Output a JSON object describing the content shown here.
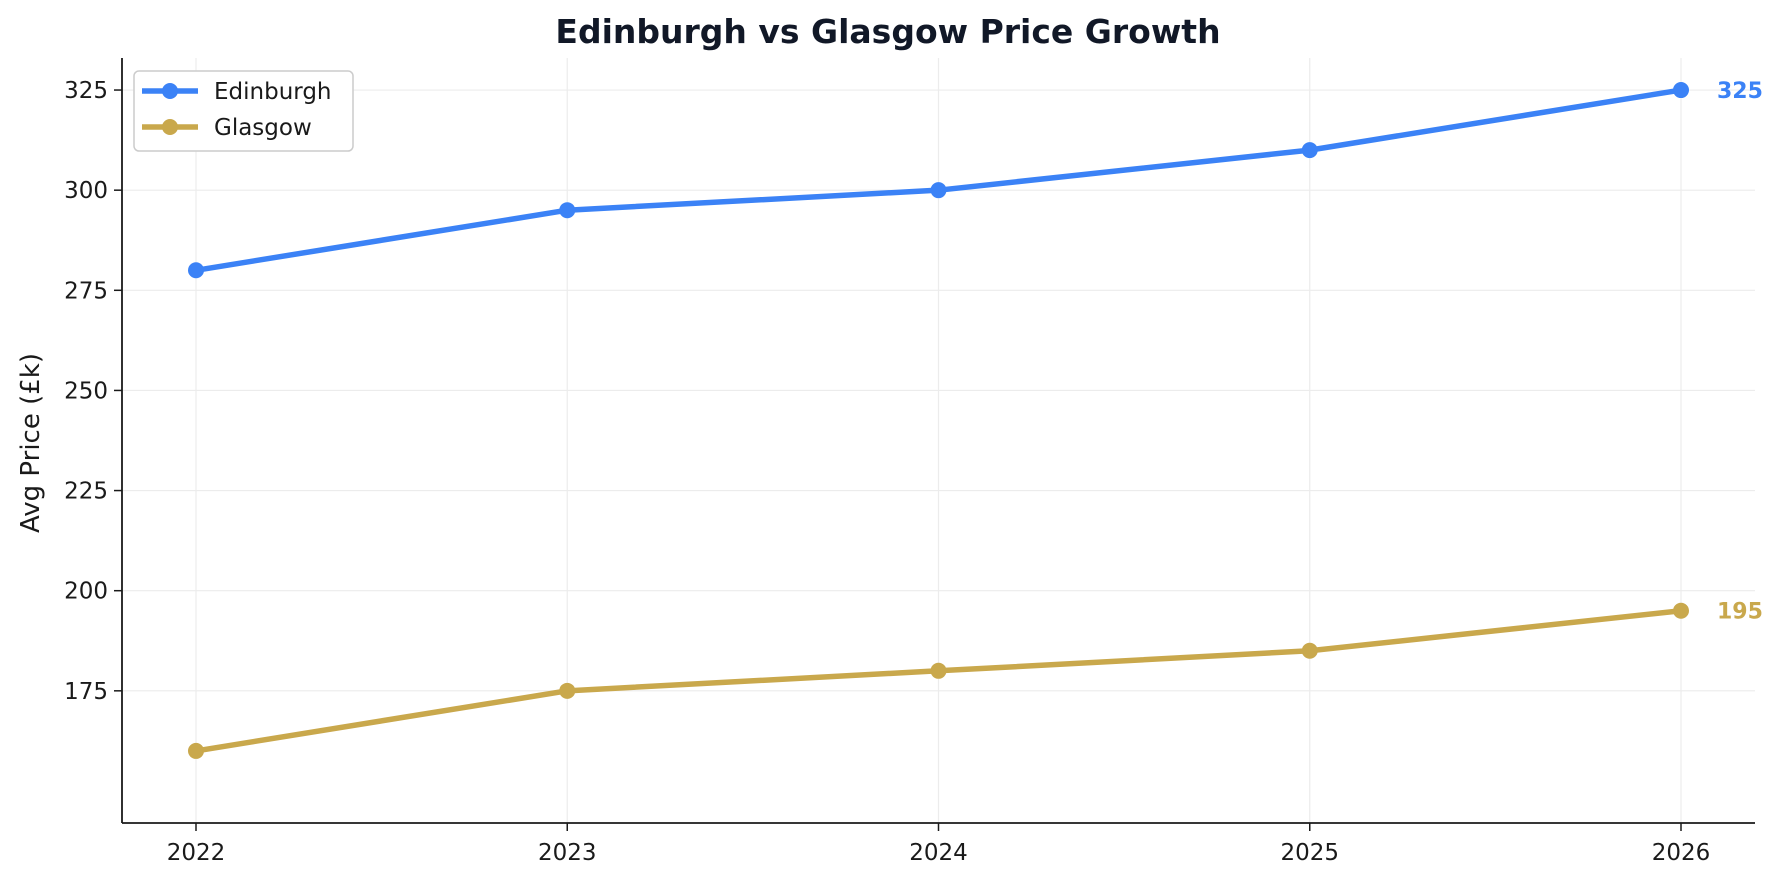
{
  "chart_data": {
    "type": "line",
    "title": "Edinburgh vs Glasgow Price Growth",
    "xlabel": "",
    "ylabel": "Avg Price (£k)",
    "x": [
      "2022",
      "2023",
      "2024",
      "2025",
      "2026"
    ],
    "ylim": [
      142,
      333
    ],
    "yticks": [
      175,
      200,
      225,
      250,
      275,
      300,
      325
    ],
    "grid": true,
    "legend_position": "top-left",
    "series": [
      {
        "name": "Edinburgh",
        "color": "#3b82f6",
        "values": [
          280,
          295,
          300,
          310,
          325
        ],
        "end_label": "325"
      },
      {
        "name": "Glasgow",
        "color": "#c9a84c",
        "values": [
          160,
          175,
          180,
          185,
          195
        ],
        "end_label": "195"
      }
    ]
  }
}
